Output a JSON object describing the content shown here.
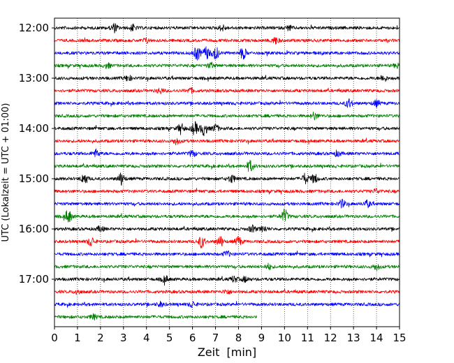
{
  "chart_data": {
    "type": "line",
    "xlabel": "Zeit  [min]",
    "ylabel": "UTC (Lokalzeit = UTC + 01:00)",
    "xlim": [
      0,
      15
    ],
    "x_ticks": [
      0,
      1,
      2,
      3,
      4,
      5,
      6,
      7,
      8,
      9,
      10,
      11,
      12,
      13,
      14,
      15
    ],
    "y_tick_labels": [
      "12:00",
      "13:00",
      "14:00",
      "15:00",
      "16:00",
      "17:00"
    ],
    "grid": "vertical dotted lines at each minute",
    "line_colors": [
      "#000000",
      "#ff0000",
      "#0000ff",
      "#008000"
    ],
    "trace_interval_min": 15,
    "start_time": "12:00",
    "last_trace_end_min": 8.8,
    "traces": [
      {
        "start": "12:00",
        "color": "#000000",
        "bursts": [
          [
            2.6,
            0.55
          ],
          [
            3.4,
            0.4
          ],
          [
            7.3,
            0.35
          ],
          [
            10.2,
            0.3
          ]
        ]
      },
      {
        "start": "12:15",
        "color": "#ff0000",
        "bursts": [
          [
            4.0,
            0.3
          ],
          [
            9.6,
            0.45
          ]
        ]
      },
      {
        "start": "12:30",
        "color": "#0000ff",
        "bursts": [
          [
            6.2,
            0.9
          ],
          [
            7.0,
            0.85
          ],
          [
            8.2,
            0.7
          ],
          [
            6.6,
            0.8
          ]
        ]
      },
      {
        "start": "12:45",
        "color": "#008000",
        "bursts": [
          [
            2.3,
            0.3
          ],
          [
            6.8,
            0.35
          ],
          [
            14.9,
            0.3
          ]
        ]
      },
      {
        "start": "13:00",
        "color": "#000000",
        "bursts": [
          [
            3.2,
            0.35
          ],
          [
            14.3,
            0.45
          ]
        ]
      },
      {
        "start": "13:15",
        "color": "#ff0000",
        "bursts": [
          [
            4.6,
            0.35
          ],
          [
            5.9,
            0.3
          ]
        ]
      },
      {
        "start": "13:30",
        "color": "#0000ff",
        "bursts": [
          [
            12.8,
            0.6
          ],
          [
            14.0,
            0.4
          ]
        ]
      },
      {
        "start": "13:45",
        "color": "#008000",
        "bursts": [
          [
            11.3,
            0.45
          ]
        ]
      },
      {
        "start": "14:00",
        "color": "#000000",
        "bursts": [
          [
            6.1,
            0.85
          ],
          [
            6.5,
            0.9
          ],
          [
            5.5,
            0.6
          ],
          [
            7.0,
            0.5
          ]
        ]
      },
      {
        "start": "14:15",
        "color": "#ff0000",
        "bursts": [
          [
            5.3,
            0.4
          ]
        ]
      },
      {
        "start": "14:30",
        "color": "#0000ff",
        "bursts": [
          [
            1.8,
            0.5
          ],
          [
            6.0,
            0.4
          ],
          [
            12.3,
            0.35
          ]
        ]
      },
      {
        "start": "14:45",
        "color": "#008000",
        "bursts": [
          [
            8.5,
            0.75
          ]
        ]
      },
      {
        "start": "15:00",
        "color": "#000000",
        "bursts": [
          [
            1.3,
            0.7
          ],
          [
            2.9,
            0.8
          ],
          [
            7.7,
            0.5
          ],
          [
            10.9,
            0.65
          ],
          [
            11.3,
            0.6
          ]
        ]
      },
      {
        "start": "15:15",
        "color": "#ff0000",
        "bursts": [
          [
            14.0,
            0.3
          ]
        ]
      },
      {
        "start": "15:30",
        "color": "#0000ff",
        "bursts": [
          [
            12.5,
            0.5
          ],
          [
            13.6,
            0.4
          ]
        ]
      },
      {
        "start": "15:45",
        "color": "#008000",
        "bursts": [
          [
            0.6,
            0.85
          ],
          [
            10.0,
            0.9
          ]
        ]
      },
      {
        "start": "16:00",
        "color": "#000000",
        "bursts": [
          [
            2.0,
            0.35
          ],
          [
            8.6,
            0.45
          ],
          [
            9.1,
            0.35
          ]
        ]
      },
      {
        "start": "16:15",
        "color": "#ff0000",
        "bursts": [
          [
            1.6,
            0.6
          ],
          [
            6.4,
            0.8
          ],
          [
            7.2,
            0.7
          ],
          [
            8.0,
            0.6
          ]
        ]
      },
      {
        "start": "16:30",
        "color": "#0000ff",
        "bursts": [
          [
            7.5,
            0.35
          ]
        ]
      },
      {
        "start": "16:45",
        "color": "#008000",
        "bursts": [
          [
            9.3,
            0.35
          ],
          [
            14.0,
            0.4
          ]
        ]
      },
      {
        "start": "17:00",
        "color": "#000000",
        "bursts": [
          [
            4.8,
            0.45
          ],
          [
            7.8,
            0.4
          ],
          [
            8.3,
            0.35
          ]
        ]
      },
      {
        "start": "17:15",
        "color": "#ff0000",
        "bursts": [
          [
            1.0,
            0.3
          ],
          [
            7.5,
            0.3
          ]
        ]
      },
      {
        "start": "17:30",
        "color": "#0000ff",
        "bursts": [
          [
            4.6,
            0.3
          ],
          [
            6.0,
            0.35
          ]
        ]
      },
      {
        "start": "17:45",
        "color": "#008000",
        "bursts": [
          [
            1.7,
            0.3
          ]
        ]
      }
    ]
  }
}
